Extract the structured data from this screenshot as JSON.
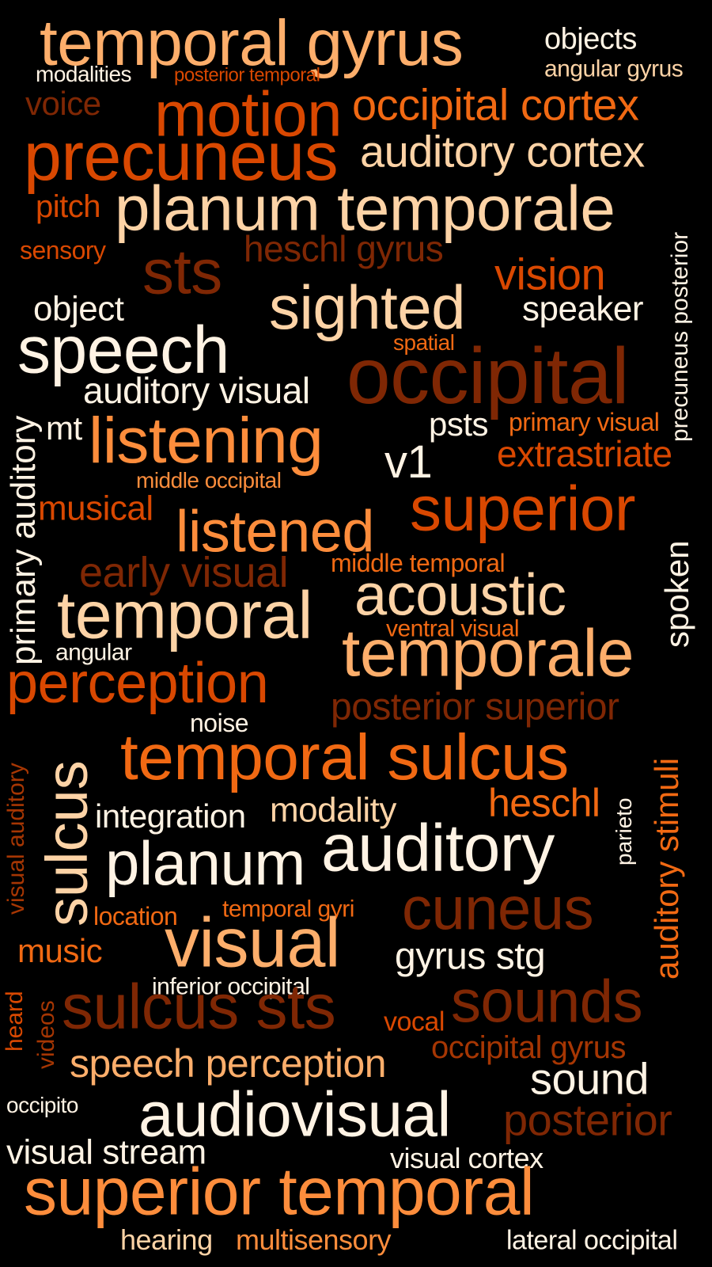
{
  "colors": {
    "background": "#000000",
    "c1": "#fff3e4",
    "c2": "#fdd3a6",
    "c3": "#fdae6b",
    "c4": "#fd8d3c",
    "c5": "#f16913",
    "c6": "#d94801",
    "c7": "#a63603",
    "c8": "#7f2704"
  },
  "words": [
    {
      "text": "temporal gyrus",
      "color": "c3"
    },
    {
      "text": "objects",
      "color": "c1"
    },
    {
      "text": "modalities",
      "color": "c1"
    },
    {
      "text": "posterior temporal",
      "color": "c6"
    },
    {
      "text": "angular gyrus",
      "color": "c2"
    },
    {
      "text": "voice",
      "color": "c8"
    },
    {
      "text": "motion",
      "color": "c6"
    },
    {
      "text": "occipital cortex",
      "color": "c5"
    },
    {
      "text": "precuneus",
      "color": "c6"
    },
    {
      "text": "auditory cortex",
      "color": "c2"
    },
    {
      "text": "pitch",
      "color": "c6"
    },
    {
      "text": "planum temporale",
      "color": "c2"
    },
    {
      "text": "precuneus posterior",
      "color": "c1"
    },
    {
      "text": "sensory",
      "color": "c6"
    },
    {
      "text": "heschl gyrus",
      "color": "c8"
    },
    {
      "text": "sts",
      "color": "c8"
    },
    {
      "text": "vision",
      "color": "c6"
    },
    {
      "text": "object",
      "color": "c1"
    },
    {
      "text": "sighted",
      "color": "c2"
    },
    {
      "text": "speaker",
      "color": "c1"
    },
    {
      "text": "speech",
      "color": "c1"
    },
    {
      "text": "spatial",
      "color": "c5"
    },
    {
      "text": "occipital",
      "color": "c8"
    },
    {
      "text": "auditory visual",
      "color": "c1"
    },
    {
      "text": "primary auditory",
      "color": "c1"
    },
    {
      "text": "mt",
      "color": "c1"
    },
    {
      "text": "listening",
      "color": "c4"
    },
    {
      "text": "psts",
      "color": "c1"
    },
    {
      "text": "primary visual",
      "color": "c5"
    },
    {
      "text": "v1",
      "color": "c1"
    },
    {
      "text": "extrastriate",
      "color": "c6"
    },
    {
      "text": "middle occipital",
      "color": "c4"
    },
    {
      "text": "musical",
      "color": "c6"
    },
    {
      "text": "superior",
      "color": "c6"
    },
    {
      "text": "listened",
      "color": "c4"
    },
    {
      "text": "early visual",
      "color": "c8"
    },
    {
      "text": "middle temporal",
      "color": "c5"
    },
    {
      "text": "spoken",
      "color": "c1"
    },
    {
      "text": "acoustic",
      "color": "c2"
    },
    {
      "text": "temporal",
      "color": "c2"
    },
    {
      "text": "ventral visual",
      "color": "c5"
    },
    {
      "text": "angular",
      "color": "c1"
    },
    {
      "text": "temporale",
      "color": "c3"
    },
    {
      "text": "perception",
      "color": "c6"
    },
    {
      "text": "posterior superior",
      "color": "c8"
    },
    {
      "text": "noise",
      "color": "c1"
    },
    {
      "text": "visual auditory",
      "color": "c7"
    },
    {
      "text": "sulcus",
      "color": "c2"
    },
    {
      "text": "temporal sulcus",
      "color": "c5"
    },
    {
      "text": "auditory stimuli",
      "color": "c5"
    },
    {
      "text": "heschl",
      "color": "c5"
    },
    {
      "text": "parieto",
      "color": "c1"
    },
    {
      "text": "integration",
      "color": "c1"
    },
    {
      "text": "modality",
      "color": "c2"
    },
    {
      "text": "planum",
      "color": "c1"
    },
    {
      "text": "auditory",
      "color": "c1"
    },
    {
      "text": "cuneus",
      "color": "c8"
    },
    {
      "text": "location",
      "color": "c5"
    },
    {
      "text": "temporal gyri",
      "color": "c5"
    },
    {
      "text": "music",
      "color": "c5"
    },
    {
      "text": "visual",
      "color": "c3"
    },
    {
      "text": "gyrus stg",
      "color": "c1"
    },
    {
      "text": "inferior occipital",
      "color": "c1"
    },
    {
      "text": "heard",
      "color": "c6"
    },
    {
      "text": "videos",
      "color": "c7"
    },
    {
      "text": "sulcus sts",
      "color": "c8"
    },
    {
      "text": "vocal",
      "color": "c6"
    },
    {
      "text": "sounds",
      "color": "c8"
    },
    {
      "text": "occipital gyrus",
      "color": "c7"
    },
    {
      "text": "speech perception",
      "color": "c3"
    },
    {
      "text": "sound",
      "color": "c1"
    },
    {
      "text": "occipito",
      "color": "c1"
    },
    {
      "text": "audiovisual",
      "color": "c1"
    },
    {
      "text": "posterior",
      "color": "c8"
    },
    {
      "text": "visual stream",
      "color": "c1"
    },
    {
      "text": "visual cortex",
      "color": "c1"
    },
    {
      "text": "superior temporal",
      "color": "c4"
    },
    {
      "text": "hearing",
      "color": "c2"
    },
    {
      "text": "multisensory",
      "color": "c4"
    },
    {
      "text": "lateral occipital",
      "color": "c1"
    }
  ]
}
